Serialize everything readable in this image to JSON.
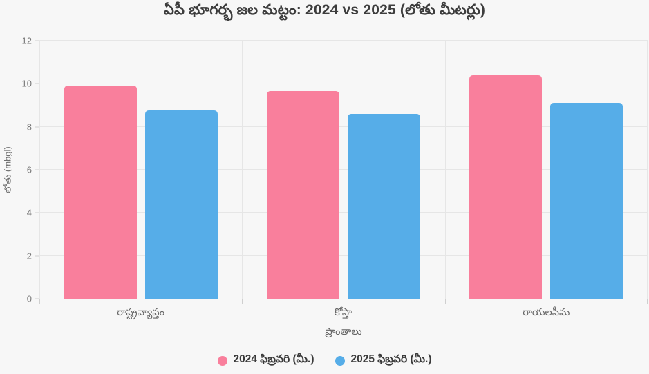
{
  "chart_data": {
    "type": "bar",
    "title": "ఏపీ భూగర్భ జల మట్టం: 2024 vs 2025 (లోతు మీటర్లు)",
    "xlabel": "ప్రాంతాలు",
    "ylabel": "లోతు (mbgl)",
    "categories": [
      "రాష్ట్రవ్యాప్తం",
      "కోస్తా",
      "రాయలసీమ"
    ],
    "series": [
      {
        "name": "2024 ఫిబ్రవరి (మీ.)",
        "color": "#f97f9c",
        "values": [
          9.9,
          9.65,
          10.4
        ]
      },
      {
        "name": "2025 ఫిబ్రవరి (మీ.)",
        "color": "#56ade8",
        "values": [
          8.75,
          8.6,
          9.1
        ]
      }
    ],
    "ylim": [
      0,
      12
    ],
    "yticks": [
      0,
      2,
      4,
      6,
      8,
      10,
      12
    ],
    "grid": true,
    "legend_position": "bottom"
  },
  "colors": {
    "background": "#f7f7f7",
    "gridline": "#e6e6e6",
    "axis_line": "#cfcfcf",
    "title_text": "#3d3d3d",
    "tick_text": "#777777",
    "axis_label_text": "#666666",
    "legend_text": "#3a3a3a"
  }
}
